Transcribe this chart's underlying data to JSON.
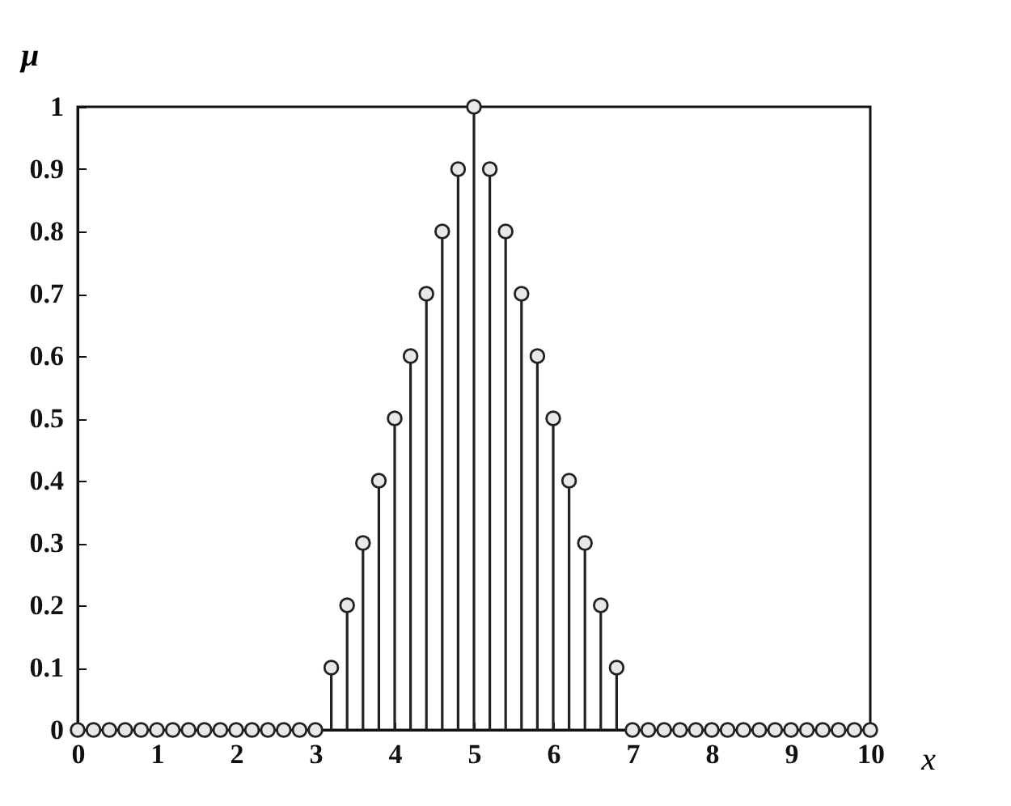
{
  "chart_data": {
    "type": "lollipop",
    "xlabel": "x",
    "ylabel": "μ",
    "x": [
      0,
      0.2,
      0.4,
      0.6,
      0.8,
      1,
      1.2,
      1.4,
      1.6,
      1.8,
      2,
      2.2,
      2.4,
      2.6,
      2.8,
      3,
      3.2,
      3.4,
      3.6,
      3.8,
      4,
      4.2,
      4.4,
      4.6,
      4.8,
      5,
      5.2,
      5.4,
      5.6,
      5.8,
      6,
      6.2,
      6.4,
      6.6,
      6.8,
      7,
      7.2,
      7.4,
      7.6,
      7.8,
      8,
      8.2,
      8.4,
      8.6,
      8.8,
      9,
      9.2,
      9.4,
      9.6,
      9.8,
      10
    ],
    "values": [
      0,
      0,
      0,
      0,
      0,
      0,
      0,
      0,
      0,
      0,
      0,
      0,
      0,
      0,
      0,
      0,
      0.1,
      0.2,
      0.3,
      0.4,
      0.5,
      0.6,
      0.7,
      0.8,
      0.9,
      1,
      0.9,
      0.8,
      0.7,
      0.6,
      0.5,
      0.4,
      0.3,
      0.2,
      0.1,
      0,
      0,
      0,
      0,
      0,
      0,
      0,
      0,
      0,
      0,
      0,
      0,
      0,
      0,
      0,
      0
    ],
    "color": "#222222",
    "marker": "circle",
    "xlim": [
      0,
      10
    ],
    "xticks": [
      0,
      1,
      2,
      3,
      4,
      5,
      6,
      7,
      8,
      9,
      10
    ],
    "ylim": [
      0,
      1
    ],
    "yticks": [
      0,
      0.1,
      0.2,
      0.3,
      0.4,
      0.5,
      0.6,
      0.7,
      0.8,
      0.9,
      1
    ]
  }
}
